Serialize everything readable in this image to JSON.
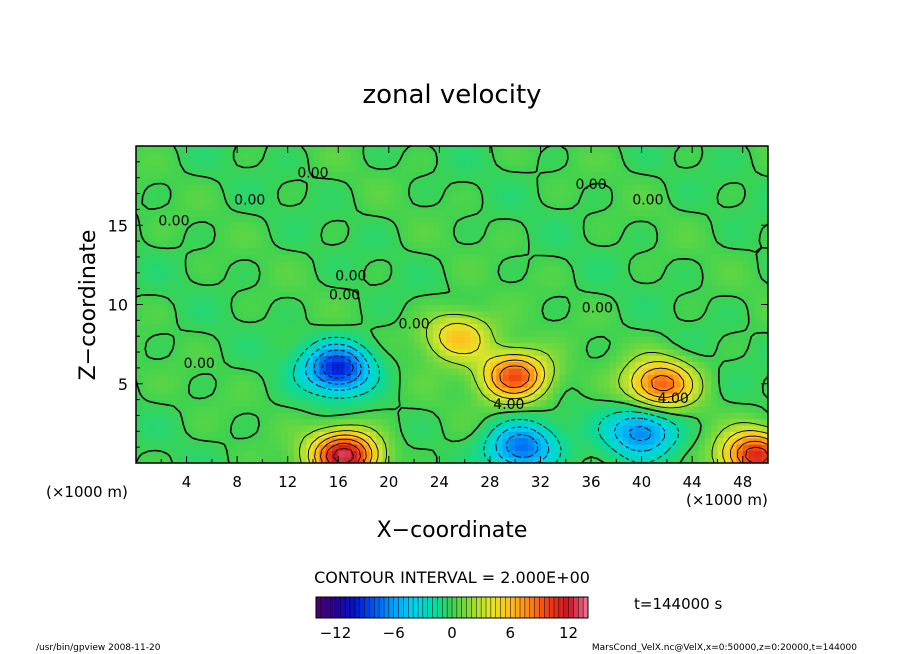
{
  "chart_data": {
    "type": "heatmap",
    "title": "zonal velocity",
    "xlabel": "X−coordinate",
    "ylabel": "Z−coordinate",
    "x_unit_left": "(×1000 m)",
    "x_unit_right": "(×1000 m)",
    "xlim": [
      0,
      50
    ],
    "ylim": [
      0,
      20
    ],
    "xticks": [
      "4",
      "8",
      "12",
      "16",
      "20",
      "24",
      "28",
      "32",
      "36",
      "40",
      "44",
      "48"
    ],
    "xtick_values": [
      4,
      8,
      12,
      16,
      20,
      24,
      28,
      32,
      36,
      40,
      44,
      48
    ],
    "yticks": [
      "5",
      "10",
      "15"
    ],
    "ytick_values": [
      5,
      10,
      15
    ],
    "contour_interval_label": "CONTOUR INTERVAL = 2.000E+00",
    "time_label": "t=144000 s",
    "colorbar": {
      "min": -14,
      "max": 14,
      "tick_labels": [
        "−12",
        "−6",
        "0",
        "6",
        "12"
      ],
      "tick_values": [
        -12,
        -6,
        0,
        6,
        12
      ]
    },
    "contour_labels": [
      {
        "text": "0.00",
        "x": 3.0,
        "z": 15.0
      },
      {
        "text": "0.00",
        "x": 9.0,
        "z": 16.3
      },
      {
        "text": "0.00",
        "x": 14.0,
        "z": 18.0
      },
      {
        "text": "0.00",
        "x": 36.0,
        "z": 17.3
      },
      {
        "text": "0.00",
        "x": 40.5,
        "z": 16.3
      },
      {
        "text": "0.00",
        "x": 17.0,
        "z": 11.5
      },
      {
        "text": "0.00",
        "x": 16.5,
        "z": 10.3
      },
      {
        "text": "0.00",
        "x": 22.0,
        "z": 8.5
      },
      {
        "text": "0.00",
        "x": 36.5,
        "z": 9.5
      },
      {
        "text": "0.00",
        "x": 5.0,
        "z": 6.0
      },
      {
        "text": "4.00",
        "x": 29.5,
        "z": 3.4
      },
      {
        "text": "4.00",
        "x": 42.5,
        "z": 3.8
      }
    ],
    "field_extrema": [
      {
        "x": 16.0,
        "z": 6.0,
        "value": -10
      },
      {
        "x": 30.0,
        "z": 5.5,
        "value": 10
      },
      {
        "x": 16.5,
        "z": 0.5,
        "value": 13
      },
      {
        "x": 41.5,
        "z": 5.0,
        "value": 9
      },
      {
        "x": 25.5,
        "z": 8.0,
        "value": 6
      },
      {
        "x": 30.5,
        "z": 1.0,
        "value": -8
      },
      {
        "x": 40.0,
        "z": 2.0,
        "value": -7
      },
      {
        "x": 49.0,
        "z": 0.5,
        "value": 11
      }
    ]
  },
  "footer": {
    "left": "/usr/bin/gpview  2008-11-20",
    "right": "MarsCond_VelX.nc@VelX,x=0:50000,z=0:20000,t=144000"
  }
}
